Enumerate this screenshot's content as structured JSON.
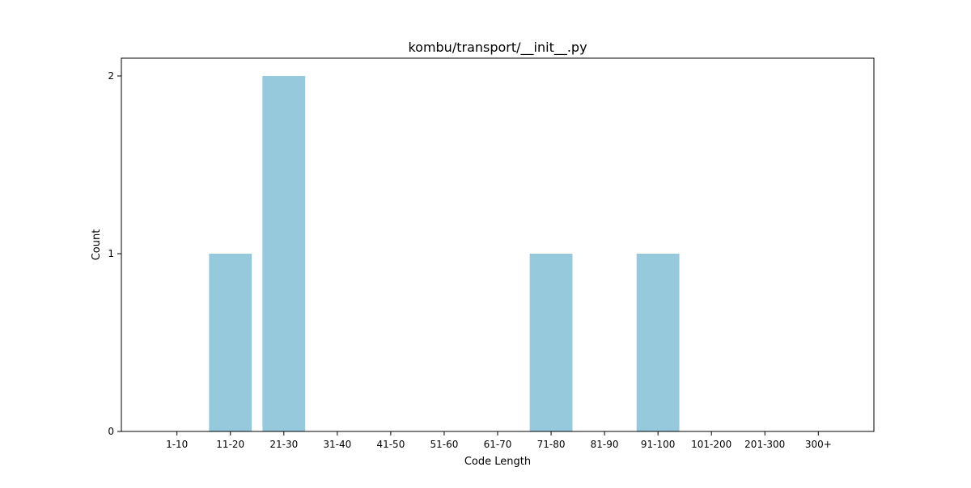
{
  "chart_data": {
    "type": "bar",
    "title": "kombu/transport/__init__.py",
    "xlabel": "Code Length",
    "ylabel": "Count",
    "categories": [
      "1-10",
      "11-20",
      "21-30",
      "31-40",
      "41-50",
      "51-60",
      "61-70",
      "71-80",
      "81-90",
      "91-100",
      "101-200",
      "201-300",
      "300+"
    ],
    "values": [
      0,
      1,
      2,
      0,
      0,
      0,
      0,
      1,
      0,
      1,
      0,
      0,
      0
    ],
    "ylim": [
      0,
      2.1
    ],
    "yticks": [
      0,
      1,
      2
    ],
    "bar_color": "#96c9dc",
    "grid": false,
    "legend": "none"
  }
}
